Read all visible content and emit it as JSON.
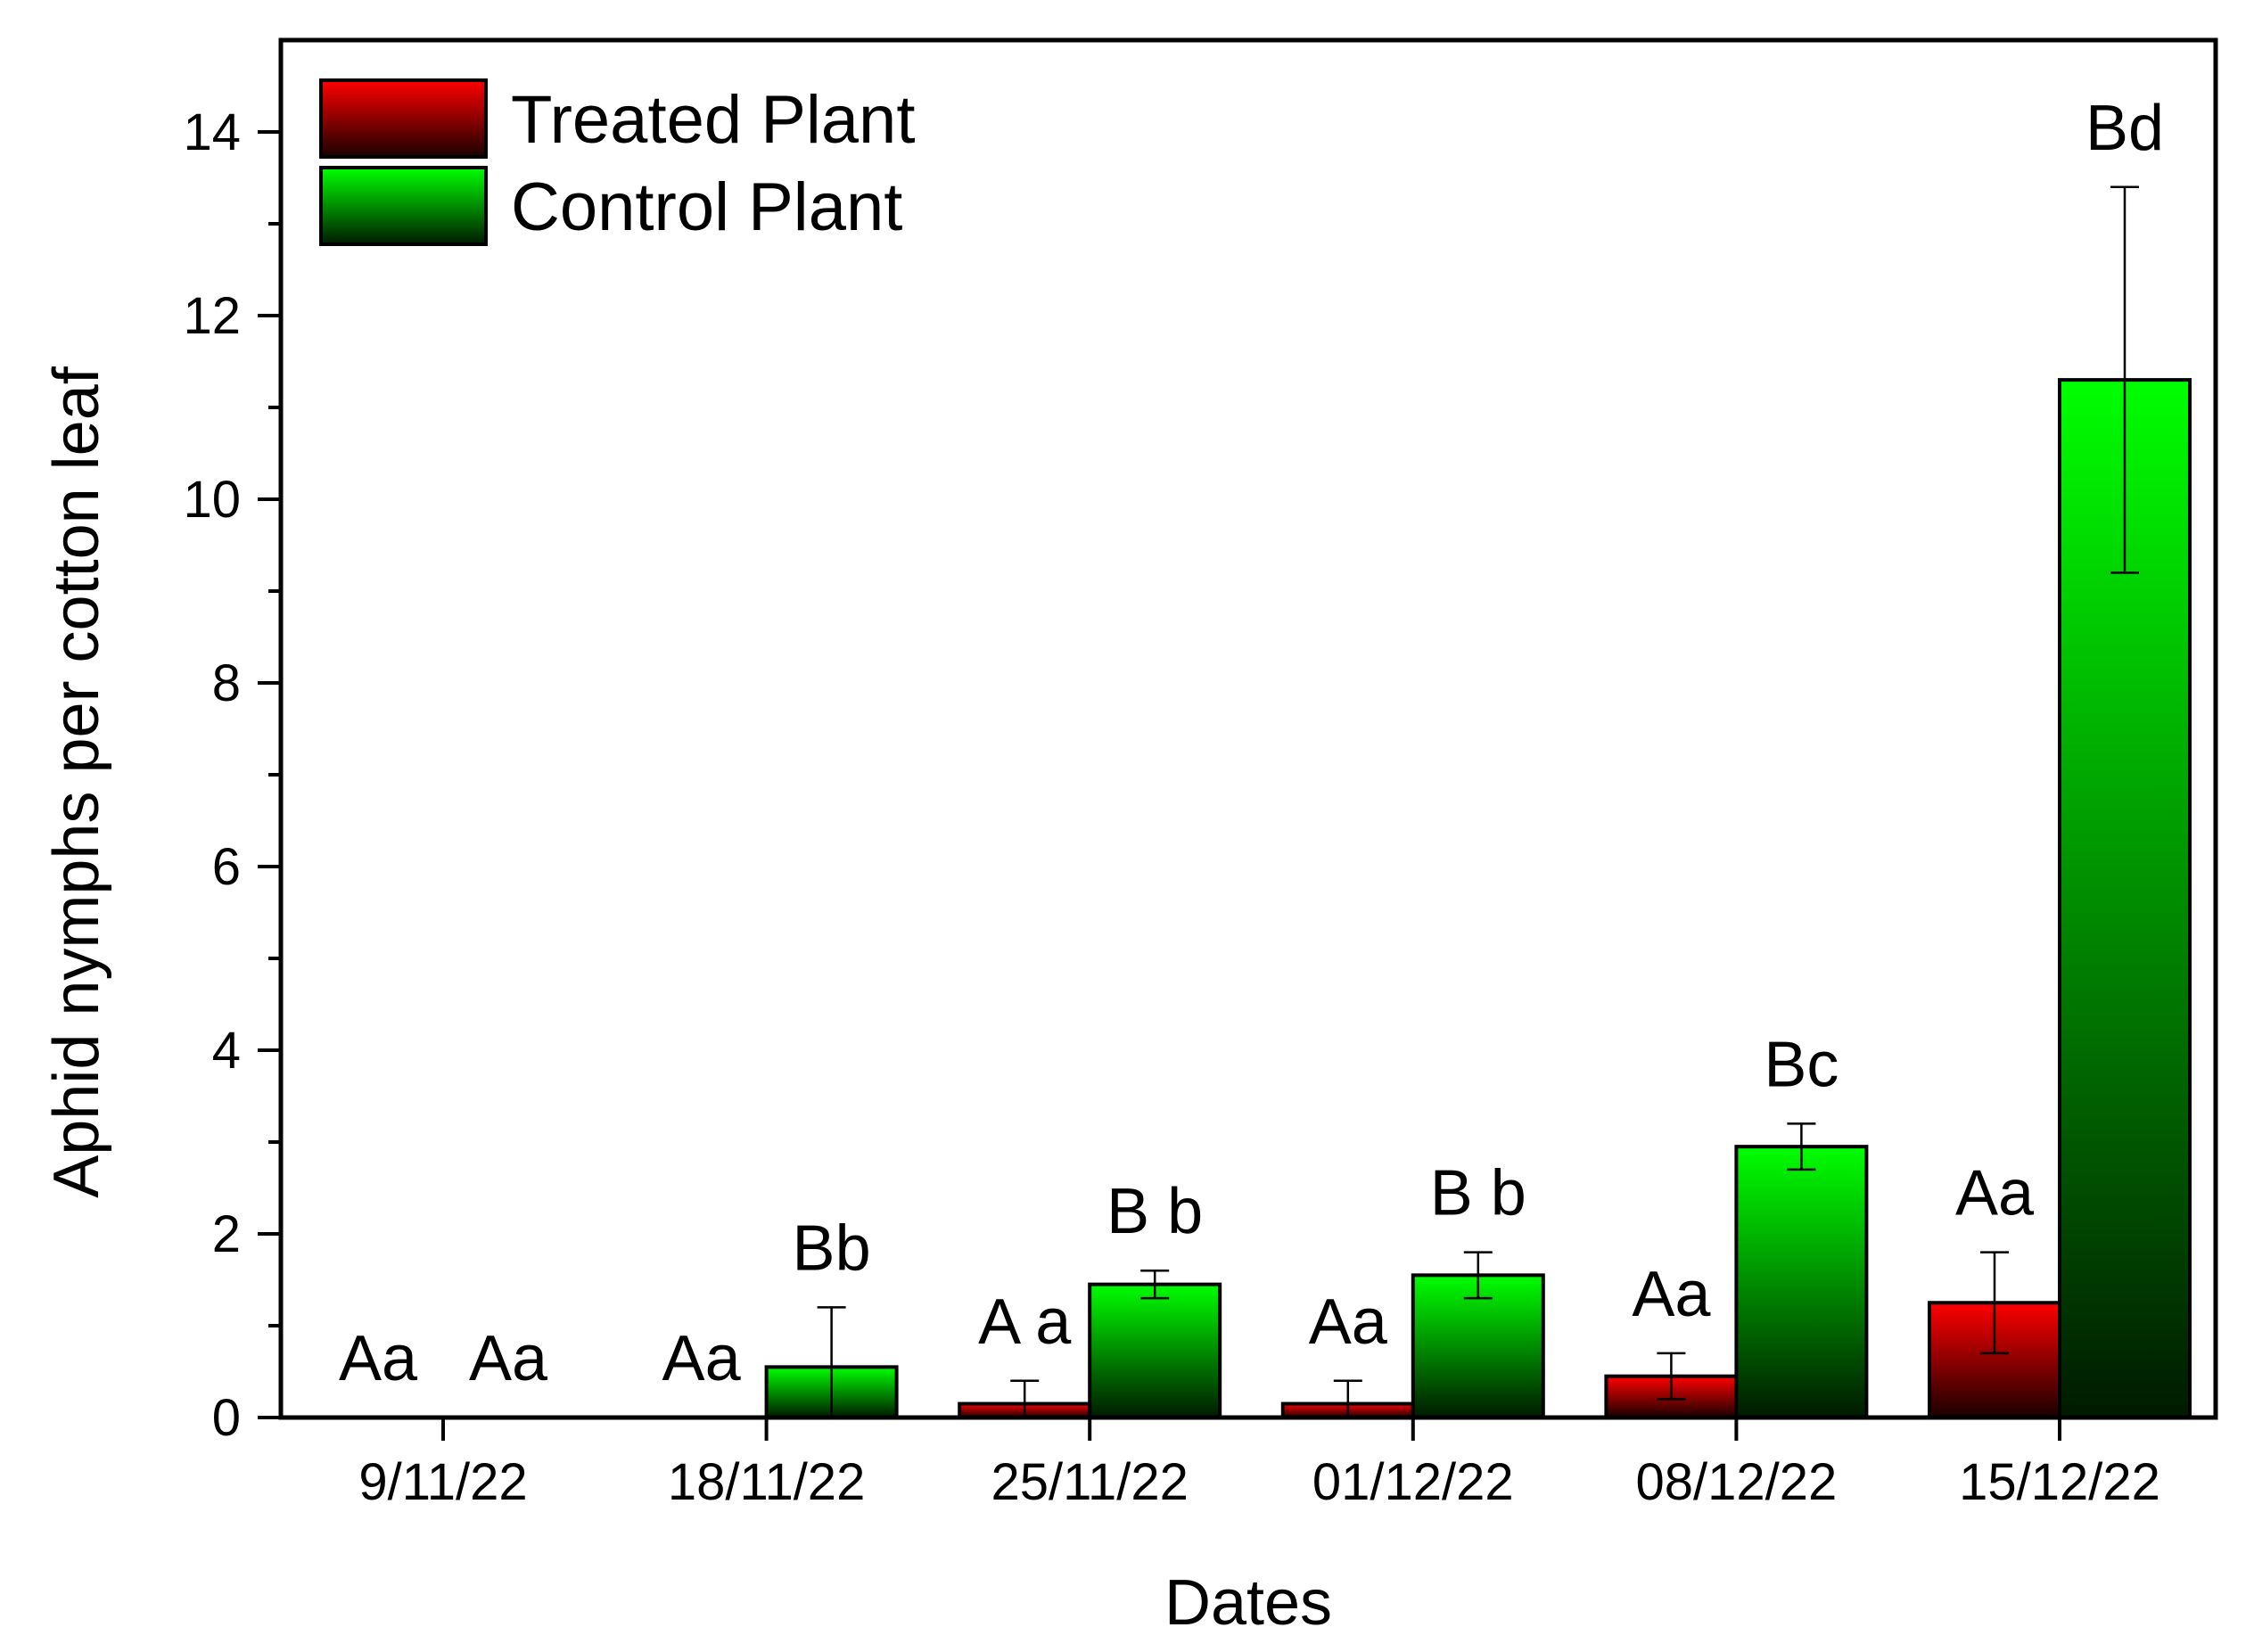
{
  "chart_data": {
    "type": "bar",
    "title": "",
    "xlabel": "Dates",
    "ylabel": "Aphid nymphs per cotton leaf",
    "ylim": [
      0,
      15
    ],
    "yticks": [
      0,
      2,
      4,
      6,
      8,
      10,
      12,
      14
    ],
    "ytick_labels": [
      "0",
      "2",
      "4",
      "6",
      "8",
      "10",
      "12",
      "14"
    ],
    "grid": false,
    "legend_position": "top-left",
    "categories": [
      "9/11/22",
      "18/11/22",
      "25/11/22",
      "01/12/22",
      "08/12/22",
      "15/12/22"
    ],
    "series": [
      {
        "name": "Treated Plant",
        "color": "#ff0000",
        "values": [
          0,
          0,
          0.15,
          0.15,
          0.45,
          1.25
        ],
        "errors": [
          0,
          0,
          0.25,
          0.25,
          0.25,
          0.55
        ],
        "labels": [
          "Aa",
          "Aa",
          "A a",
          "Aa",
          "Aa",
          "Aa"
        ]
      },
      {
        "name": "Control Plant",
        "color": "#00ff00",
        "values": [
          0,
          0.55,
          1.45,
          1.55,
          2.95,
          11.3
        ],
        "errors": [
          0,
          0.65,
          0.15,
          0.25,
          0.25,
          2.1
        ],
        "labels": [
          "Aa",
          "Bb",
          "B b",
          "B b",
          "Bc",
          "Bd"
        ]
      }
    ]
  }
}
